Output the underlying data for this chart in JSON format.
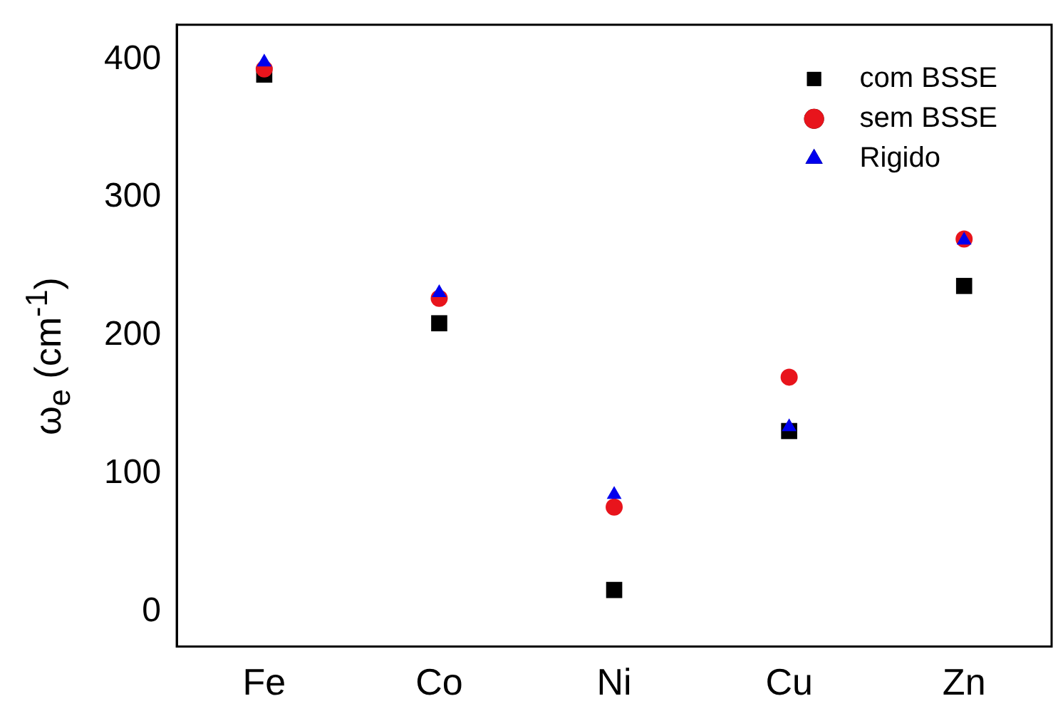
{
  "chart_data": {
    "type": "scatter",
    "ylabel": "ω$_{e}$ (cm$^{-1}$)",
    "categories": [
      "Fe",
      "Co",
      "Ni",
      "Cu",
      "Zn"
    ],
    "series": [
      {
        "name": "com BSSE",
        "color": "#000000",
        "marker": "square",
        "values": [
          389,
          209,
          16,
          131,
          236
        ]
      },
      {
        "name": "sem BSSE",
        "color": "#e8141c",
        "marker": "circle",
        "values": [
          393,
          227,
          76,
          170,
          270
        ]
      },
      {
        "name": "Rigido",
        "color": "#0000ee",
        "marker": "triangle",
        "values": [
          398,
          231,
          85,
          134,
          269
        ]
      }
    ],
    "ylim": [
      -25,
      425
    ],
    "yticks": [
      0,
      100,
      200,
      300,
      400
    ],
    "grid": false,
    "legend": "top right"
  }
}
